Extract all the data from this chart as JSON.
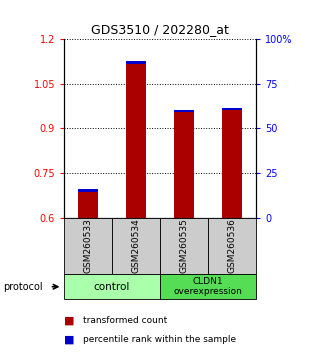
{
  "title": "GDS3510 / 202280_at",
  "samples": [
    "GSM260533",
    "GSM260534",
    "GSM260535",
    "GSM260536"
  ],
  "red_values": [
    0.685,
    1.115,
    0.955,
    0.96
  ],
  "blue_values": [
    0.695,
    1.125,
    0.96,
    0.968
  ],
  "red_base": 0.6,
  "ylim": [
    0.6,
    1.2
  ],
  "y_ticks_left": [
    0.6,
    0.75,
    0.9,
    1.05,
    1.2
  ],
  "y_ticks_right": [
    0,
    25,
    50,
    75,
    100
  ],
  "right_tick_labels": [
    "0",
    "25",
    "50",
    "75",
    "100%"
  ],
  "bar_color": "#aa0000",
  "blue_color": "#0000cc",
  "bar_width": 0.4,
  "legend_red": "transformed count",
  "legend_blue": "percentile rank within the sample",
  "protocol_label": "protocol",
  "control_color": "#aaffaa",
  "overexp_color": "#55dd55",
  "sample_bg": "#cccccc"
}
